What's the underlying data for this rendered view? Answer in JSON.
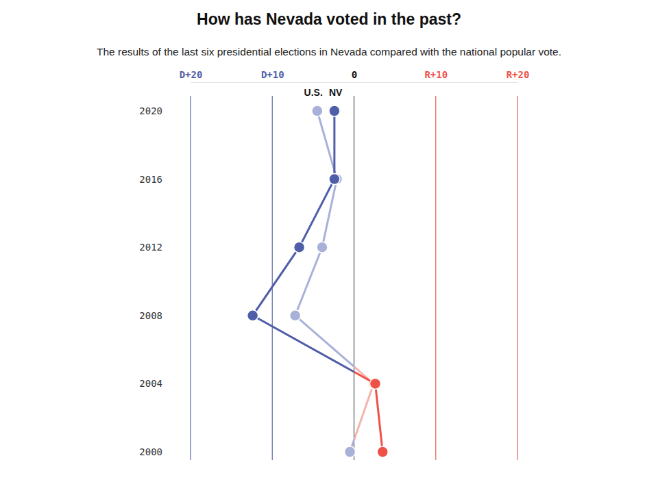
{
  "chart_data": {
    "type": "line",
    "title": "How has Nevada voted in the past?",
    "subtitle": "The results of the last six presidential elections in Nevada compared with the national popular vote.",
    "orientation": "horizontal",
    "categories": [
      "2020",
      "2016",
      "2012",
      "2008",
      "2004",
      "2000"
    ],
    "series": [
      {
        "name": "U.S.",
        "values": [
          -4.5,
          -2.1,
          -3.9,
          -7.2,
          2.4,
          -0.5
        ],
        "colors": [
          "#a9b1d8",
          "#a9b1d8",
          "#a9b1d8",
          "#a9b1d8",
          "#f4b4ab",
          "#a9b1d8"
        ]
      },
      {
        "name": "NV",
        "values": [
          -2.4,
          -2.4,
          -6.7,
          -12.4,
          2.6,
          3.5
        ],
        "colors": [
          "#4f5ea8",
          "#4f5ea8",
          "#4f5ea8",
          "#4f5ea8",
          "#ef5147",
          "#ef5147"
        ]
      }
    ],
    "xlim": [
      -20,
      20
    ],
    "xticks": [
      {
        "value": -20,
        "label": "D+20"
      },
      {
        "value": -10,
        "label": "D+10"
      },
      0,
      {
        "value": 10,
        "label": "R+10"
      },
      {
        "value": 20,
        "label": "R+20"
      }
    ],
    "marker": "circle",
    "grid": true
  }
}
